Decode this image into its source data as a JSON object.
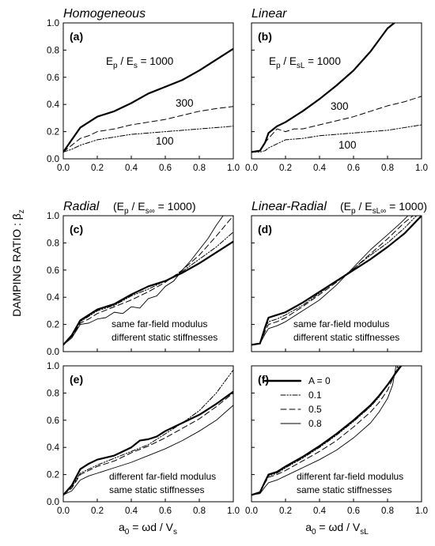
{
  "figure": {
    "y_axis_label": "DAMPING RATIO : β",
    "y_axis_label_sub": "z",
    "x_axis_label_left": "a",
    "x_axis_label_left_sub": "0",
    "x_axis_label_left_rest": " = ωd / V",
    "x_axis_label_left_sub2": "s",
    "x_axis_label_right": "a",
    "x_axis_label_right_sub": "0",
    "x_axis_label_right_rest": " = ωd / V",
    "x_axis_label_right_sub2": "sL"
  },
  "legend": {
    "entries": [
      {
        "label": "A = 0",
        "style": "solid-thick"
      },
      {
        "label": "0.1",
        "style": "dash-dot-dot"
      },
      {
        "label": "0.5",
        "style": "dashed"
      },
      {
        "label": "0.8",
        "style": "solid-thin"
      }
    ]
  },
  "chart_data": [
    {
      "id": "a",
      "type": "line",
      "title": "Homogeneous",
      "letter": "(a)",
      "xlim": [
        0,
        1
      ],
      "ylim": [
        0,
        1
      ],
      "xticks": [
        "0.0",
        "0.2",
        "0.4",
        "0.6",
        "0.8",
        "1.0"
      ],
      "yticks": [
        "0.0",
        "0.2",
        "0.4",
        "0.6",
        "0.8",
        "1.0"
      ],
      "annotations": [
        "E / E = 1000",
        "300",
        "100"
      ],
      "series": [
        {
          "style": "solid-thick",
          "x": [
            0,
            0.05,
            0.1,
            0.15,
            0.2,
            0.3,
            0.4,
            0.5,
            0.6,
            0.7,
            0.8,
            0.9,
            1.0
          ],
          "y": [
            0.05,
            0.14,
            0.23,
            0.27,
            0.31,
            0.35,
            0.41,
            0.48,
            0.53,
            0.58,
            0.65,
            0.73,
            0.81
          ]
        },
        {
          "style": "dashed",
          "x": [
            0,
            0.05,
            0.1,
            0.15,
            0.2,
            0.3,
            0.4,
            0.5,
            0.6,
            0.7,
            0.8,
            0.9,
            1.0
          ],
          "y": [
            0.05,
            0.1,
            0.15,
            0.17,
            0.2,
            0.22,
            0.25,
            0.27,
            0.29,
            0.32,
            0.35,
            0.37,
            0.385
          ]
        },
        {
          "style": "dash-dot-dot",
          "x": [
            0,
            0.05,
            0.1,
            0.15,
            0.2,
            0.3,
            0.4,
            0.5,
            0.6,
            0.7,
            0.8,
            0.9,
            1.0
          ],
          "y": [
            0.05,
            0.07,
            0.1,
            0.12,
            0.14,
            0.16,
            0.18,
            0.19,
            0.2,
            0.21,
            0.22,
            0.23,
            0.24
          ]
        }
      ]
    },
    {
      "id": "b",
      "type": "line",
      "title": "Linear",
      "letter": "(b)",
      "xlim": [
        0,
        1
      ],
      "ylim": [
        0,
        1
      ],
      "xticks": [
        "0.0",
        "0.2",
        "0.4",
        "0.6",
        "0.8",
        "1.0"
      ],
      "yticks": [],
      "annotations": [
        "E / E = 1000",
        "300",
        "100"
      ],
      "series": [
        {
          "style": "solid-thick",
          "x": [
            0,
            0.05,
            0.08,
            0.1,
            0.15,
            0.2,
            0.3,
            0.4,
            0.5,
            0.6,
            0.7,
            0.8,
            0.84
          ],
          "y": [
            0.05,
            0.06,
            0.12,
            0.19,
            0.24,
            0.27,
            0.35,
            0.44,
            0.54,
            0.65,
            0.79,
            0.96,
            1.0
          ]
        },
        {
          "style": "dashed",
          "x": [
            0,
            0.05,
            0.08,
            0.1,
            0.15,
            0.2,
            0.25,
            0.3,
            0.4,
            0.5,
            0.6,
            0.7,
            0.8,
            0.9,
            1.0
          ],
          "y": [
            0.05,
            0.06,
            0.12,
            0.15,
            0.22,
            0.2,
            0.22,
            0.22,
            0.25,
            0.28,
            0.31,
            0.35,
            0.39,
            0.42,
            0.46
          ]
        },
        {
          "style": "dash-dot-dot",
          "x": [
            0,
            0.05,
            0.08,
            0.1,
            0.15,
            0.2,
            0.3,
            0.4,
            0.5,
            0.6,
            0.7,
            0.8,
            0.9,
            1.0
          ],
          "y": [
            0.05,
            0.05,
            0.06,
            0.08,
            0.11,
            0.14,
            0.15,
            0.17,
            0.18,
            0.19,
            0.2,
            0.21,
            0.23,
            0.25
          ]
        }
      ]
    },
    {
      "id": "c",
      "type": "line",
      "title": "Radial",
      "subtitle": "(E / E = 1000)",
      "letter": "(c)",
      "xlim": [
        0,
        1
      ],
      "ylim": [
        0,
        1
      ],
      "xticks": [],
      "yticks": [
        "0.0",
        "0.2",
        "0.4",
        "0.6",
        "0.8",
        "1.0"
      ],
      "annotations": [
        "same far-field modulus",
        "different static stiffnesses"
      ],
      "series": [
        {
          "style": "solid-thick",
          "x": [
            0,
            0.05,
            0.1,
            0.15,
            0.2,
            0.3,
            0.4,
            0.5,
            0.6,
            0.7,
            0.8,
            0.9,
            1.0
          ],
          "y": [
            0.05,
            0.12,
            0.23,
            0.27,
            0.31,
            0.35,
            0.42,
            0.48,
            0.52,
            0.58,
            0.65,
            0.73,
            0.81
          ]
        },
        {
          "style": "dash-dot-dot",
          "x": [
            0,
            0.05,
            0.1,
            0.15,
            0.2,
            0.3,
            0.4,
            0.5,
            0.6,
            0.7,
            0.8,
            0.9,
            1.0
          ],
          "y": [
            0.05,
            0.12,
            0.22,
            0.26,
            0.3,
            0.34,
            0.41,
            0.46,
            0.52,
            0.59,
            0.68,
            0.77,
            0.88
          ]
        },
        {
          "style": "dashed",
          "x": [
            0,
            0.05,
            0.1,
            0.15,
            0.2,
            0.3,
            0.4,
            0.5,
            0.6,
            0.7,
            0.8,
            0.9,
            1.0
          ],
          "y": [
            0.05,
            0.11,
            0.21,
            0.24,
            0.28,
            0.33,
            0.38,
            0.44,
            0.51,
            0.6,
            0.71,
            0.85,
            1.0
          ]
        },
        {
          "style": "solid-thin",
          "x": [
            0,
            0.05,
            0.1,
            0.15,
            0.2,
            0.25,
            0.3,
            0.35,
            0.4,
            0.45,
            0.5,
            0.55,
            0.6,
            0.65,
            0.7,
            0.75,
            0.8,
            0.85,
            0.9,
            0.94
          ],
          "y": [
            0.05,
            0.1,
            0.2,
            0.21,
            0.24,
            0.25,
            0.29,
            0.28,
            0.33,
            0.32,
            0.39,
            0.41,
            0.48,
            0.52,
            0.6,
            0.67,
            0.75,
            0.83,
            0.93,
            1.0
          ]
        }
      ]
    },
    {
      "id": "d",
      "type": "line",
      "title": "Linear-Radial",
      "subtitle": "(E / E = 1000)",
      "letter": "(d)",
      "xlim": [
        0,
        1
      ],
      "ylim": [
        0,
        1
      ],
      "xticks": [],
      "yticks": [],
      "annotations": [
        "same far-field modulus",
        "different static stiffnesses"
      ],
      "series": [
        {
          "style": "solid-thick",
          "x": [
            0,
            0.05,
            0.08,
            0.1,
            0.15,
            0.2,
            0.3,
            0.4,
            0.5,
            0.6,
            0.7,
            0.8,
            0.9,
            1.0
          ],
          "y": [
            0.05,
            0.06,
            0.18,
            0.25,
            0.27,
            0.29,
            0.36,
            0.44,
            0.52,
            0.6,
            0.68,
            0.77,
            0.87,
            1.0
          ]
        },
        {
          "style": "dash-dot-dot",
          "x": [
            0,
            0.05,
            0.08,
            0.1,
            0.15,
            0.2,
            0.3,
            0.4,
            0.5,
            0.6,
            0.7,
            0.8,
            0.9,
            0.97
          ],
          "y": [
            0.05,
            0.06,
            0.17,
            0.22,
            0.24,
            0.27,
            0.34,
            0.43,
            0.52,
            0.61,
            0.71,
            0.8,
            0.91,
            1.0
          ]
        },
        {
          "style": "dashed",
          "x": [
            0,
            0.05,
            0.08,
            0.1,
            0.15,
            0.2,
            0.3,
            0.4,
            0.5,
            0.6,
            0.7,
            0.8,
            0.9,
            0.95
          ],
          "y": [
            0.05,
            0.06,
            0.15,
            0.2,
            0.22,
            0.25,
            0.33,
            0.42,
            0.51,
            0.61,
            0.72,
            0.83,
            0.95,
            1.0
          ]
        },
        {
          "style": "solid-thin",
          "x": [
            0,
            0.05,
            0.08,
            0.1,
            0.15,
            0.2,
            0.3,
            0.4,
            0.5,
            0.6,
            0.7,
            0.8,
            0.88,
            0.92
          ],
          "y": [
            0.05,
            0.06,
            0.13,
            0.17,
            0.19,
            0.22,
            0.3,
            0.38,
            0.49,
            0.62,
            0.75,
            0.86,
            0.95,
            1.0
          ]
        }
      ]
    },
    {
      "id": "e",
      "type": "line",
      "letter": "(e)",
      "xlim": [
        0,
        1
      ],
      "ylim": [
        0,
        1
      ],
      "xticks": [
        "0.0",
        "0.2",
        "0.4",
        "0.6",
        "0.8",
        "1.0"
      ],
      "yticks": [
        "0.0",
        "0.2",
        "0.4",
        "0.6",
        "0.8",
        "1.0"
      ],
      "annotations": [
        "different far-field modulus",
        "same static stiffnesses"
      ],
      "series": [
        {
          "style": "solid-thick",
          "x": [
            0,
            0.05,
            0.1,
            0.15,
            0.2,
            0.3,
            0.4,
            0.45,
            0.5,
            0.55,
            0.6,
            0.7,
            0.8,
            0.9,
            1.0
          ],
          "y": [
            0.05,
            0.12,
            0.24,
            0.28,
            0.31,
            0.34,
            0.4,
            0.45,
            0.46,
            0.48,
            0.52,
            0.58,
            0.64,
            0.72,
            0.81
          ]
        },
        {
          "style": "dash-dot-dot",
          "x": [
            0,
            0.05,
            0.1,
            0.15,
            0.2,
            0.3,
            0.4,
            0.5,
            0.6,
            0.7,
            0.8,
            0.9,
            1.0
          ],
          "y": [
            0.05,
            0.11,
            0.21,
            0.24,
            0.27,
            0.32,
            0.37,
            0.42,
            0.5,
            0.58,
            0.67,
            0.8,
            0.97
          ]
        },
        {
          "style": "dashed",
          "x": [
            0,
            0.05,
            0.1,
            0.15,
            0.2,
            0.3,
            0.4,
            0.5,
            0.6,
            0.7,
            0.8,
            0.9,
            1.0
          ],
          "y": [
            0.05,
            0.1,
            0.2,
            0.23,
            0.26,
            0.3,
            0.36,
            0.41,
            0.47,
            0.54,
            0.61,
            0.7,
            0.8
          ]
        },
        {
          "style": "solid-thin",
          "x": [
            0,
            0.05,
            0.1,
            0.15,
            0.2,
            0.3,
            0.4,
            0.5,
            0.6,
            0.7,
            0.8,
            0.9,
            1.0
          ],
          "y": [
            0.05,
            0.08,
            0.16,
            0.19,
            0.21,
            0.25,
            0.29,
            0.34,
            0.39,
            0.45,
            0.52,
            0.6,
            0.71
          ]
        }
      ]
    },
    {
      "id": "f",
      "type": "line",
      "letter": "(f)",
      "xlim": [
        0,
        1
      ],
      "ylim": [
        0,
        1
      ],
      "xticks": [
        "0.0",
        "0.2",
        "0.4",
        "0.6",
        "0.8",
        "1.0"
      ],
      "yticks": [],
      "annotations": [
        "different far-field modulus",
        "same static stiffnesses"
      ],
      "series": [
        {
          "style": "solid-thick",
          "x": [
            0,
            0.05,
            0.08,
            0.1,
            0.15,
            0.2,
            0.3,
            0.4,
            0.5,
            0.6,
            0.7,
            0.75,
            0.8,
            0.85,
            0.88
          ],
          "y": [
            0.05,
            0.07,
            0.15,
            0.2,
            0.22,
            0.26,
            0.33,
            0.41,
            0.5,
            0.6,
            0.71,
            0.78,
            0.86,
            0.95,
            1.0
          ]
        },
        {
          "style": "dash-dot-dot",
          "x": [
            0,
            0.05,
            0.08,
            0.1,
            0.15,
            0.2,
            0.3,
            0.4,
            0.5,
            0.6,
            0.7,
            0.75,
            0.8,
            0.85,
            0.87
          ],
          "y": [
            0.05,
            0.07,
            0.15,
            0.19,
            0.21,
            0.25,
            0.32,
            0.4,
            0.49,
            0.59,
            0.7,
            0.77,
            0.86,
            0.96,
            1.0
          ]
        },
        {
          "style": "dashed",
          "x": [
            0,
            0.05,
            0.08,
            0.1,
            0.15,
            0.2,
            0.3,
            0.4,
            0.5,
            0.6,
            0.7,
            0.75,
            0.8,
            0.85,
            0.86
          ],
          "y": [
            0.05,
            0.07,
            0.14,
            0.18,
            0.2,
            0.23,
            0.3,
            0.37,
            0.45,
            0.55,
            0.66,
            0.73,
            0.82,
            0.96,
            1.0
          ]
        },
        {
          "style": "solid-thin",
          "x": [
            0,
            0.05,
            0.08,
            0.1,
            0.15,
            0.2,
            0.3,
            0.4,
            0.5,
            0.6,
            0.7,
            0.75,
            0.8,
            0.83,
            0.85
          ],
          "y": [
            0.05,
            0.06,
            0.11,
            0.14,
            0.16,
            0.19,
            0.25,
            0.31,
            0.38,
            0.47,
            0.58,
            0.66,
            0.76,
            0.86,
            1.0
          ]
        }
      ]
    }
  ]
}
